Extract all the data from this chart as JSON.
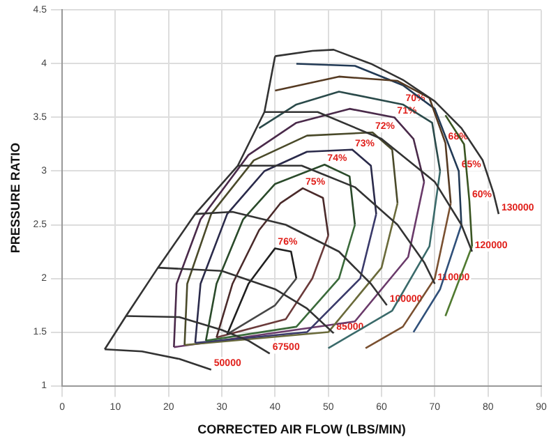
{
  "chart_data": {
    "type": "line",
    "xlabel": "CORRECTED AIR FLOW (LBS/MIN)",
    "ylabel": "PRESSURE RATIO",
    "xlim": [
      0,
      90
    ],
    "xticks": [
      0,
      10,
      20,
      30,
      40,
      50,
      60,
      70,
      80,
      90
    ],
    "ylim": [
      1,
      4.5
    ],
    "yticks": [
      1,
      1.5,
      2,
      2.5,
      3,
      3.5,
      4,
      4.5
    ],
    "grid": true,
    "marker": "none",
    "line_style": "solid",
    "legend": false,
    "series": [
      {
        "color": "#333333",
        "x": [
          8,
          12,
          18,
          25,
          33,
          38,
          40
        ],
        "values": [
          1.34,
          1.65,
          2.1,
          2.6,
          3.05,
          3.55,
          4.07
        ]
      },
      {
        "color": "#333333",
        "x": [
          8,
          15,
          22,
          28
        ],
        "values": [
          1.34,
          1.32,
          1.25,
          1.15
        ]
      },
      {
        "color": "#333333",
        "x": [
          12,
          22,
          30,
          35,
          39
        ],
        "values": [
          1.65,
          1.64,
          1.52,
          1.42,
          1.3
        ]
      },
      {
        "color": "#333333",
        "x": [
          18,
          30,
          40,
          46,
          51
        ],
        "values": [
          2.1,
          2.07,
          1.9,
          1.72,
          1.49
        ]
      },
      {
        "color": "#333333",
        "x": [
          25,
          32,
          42,
          52,
          58,
          61
        ],
        "values": [
          2.6,
          2.62,
          2.5,
          2.25,
          1.95,
          1.75
        ]
      },
      {
        "color": "#333333",
        "x": [
          33,
          45,
          55,
          63,
          68,
          70
        ],
        "values": [
          3.05,
          3.05,
          2.85,
          2.5,
          2.15,
          1.95
        ]
      },
      {
        "color": "#333333",
        "x": [
          38,
          48,
          60,
          70,
          75,
          77
        ],
        "values": [
          3.55,
          3.55,
          3.3,
          2.9,
          2.5,
          2.25
        ]
      },
      {
        "color": "#333333",
        "x": [
          40,
          47,
          51,
          58,
          64,
          70,
          75,
          79,
          81,
          82
        ],
        "values": [
          4.07,
          4.12,
          4.13,
          4.0,
          3.85,
          3.65,
          3.4,
          3.1,
          2.8,
          2.6
        ]
      },
      {
        "color": "#1f1f1f",
        "x": [
          31,
          35,
          38,
          40,
          43,
          44
        ],
        "values": [
          1.48,
          1.95,
          2.15,
          2.28,
          2.25,
          2.0
        ]
      },
      {
        "color": "#474747",
        "x": [
          31,
          40,
          44
        ],
        "values": [
          1.48,
          1.75,
          2.0
        ]
      },
      {
        "color": "#4a2a2a",
        "x": [
          29,
          32,
          37,
          41,
          45.2,
          49,
          50
        ],
        "values": [
          1.45,
          1.95,
          2.45,
          2.7,
          2.84,
          2.75,
          2.4
        ]
      },
      {
        "color": "#6a3a3a",
        "x": [
          29,
          42,
          47,
          50
        ],
        "values": [
          1.45,
          1.62,
          2.0,
          2.4
        ]
      },
      {
        "color": "#2a4a2a",
        "x": [
          27,
          29,
          34,
          40,
          49.3,
          54,
          55
        ],
        "values": [
          1.42,
          1.95,
          2.55,
          2.88,
          3.06,
          2.95,
          2.5
        ]
      },
      {
        "color": "#3a6a3a",
        "x": [
          27,
          44,
          52,
          55
        ],
        "values": [
          1.42,
          1.55,
          2.0,
          2.5
        ]
      },
      {
        "color": "#2a2a4a",
        "x": [
          25,
          26,
          31,
          38,
          46,
          54.5,
          58,
          59
        ],
        "values": [
          1.4,
          1.95,
          2.6,
          3.0,
          3.18,
          3.2,
          3.05,
          2.6
        ]
      },
      {
        "color": "#3a3a6a",
        "x": [
          25,
          46,
          56,
          59
        ],
        "values": [
          1.4,
          1.5,
          2.0,
          2.6
        ]
      },
      {
        "color": "#4a4a2a",
        "x": [
          23,
          23.5,
          28,
          36,
          46,
          58.3,
          62,
          63
        ],
        "values": [
          1.38,
          1.95,
          2.6,
          3.1,
          3.33,
          3.36,
          3.2,
          2.7
        ]
      },
      {
        "color": "#6a6a3a",
        "x": [
          23,
          50,
          60,
          63
        ],
        "values": [
          1.38,
          1.5,
          2.1,
          2.7
        ]
      },
      {
        "color": "#4a2a4a",
        "x": [
          21,
          21.5,
          26,
          35,
          44,
          54,
          62.4,
          66,
          68
        ],
        "values": [
          1.36,
          1.95,
          2.55,
          3.15,
          3.45,
          3.58,
          3.5,
          3.3,
          2.9
        ]
      },
      {
        "color": "#6a3a6a",
        "x": [
          21,
          55,
          65,
          68
        ],
        "values": [
          1.36,
          1.6,
          2.2,
          2.9
        ]
      },
      {
        "color": "#2a4a4a",
        "x": [
          37,
          44,
          52,
          64,
          69.5,
          71
        ],
        "values": [
          3.4,
          3.62,
          3.74,
          3.62,
          3.45,
          3.0
        ]
      },
      {
        "color": "#3a6a6a",
        "x": [
          50,
          62,
          69,
          71
        ],
        "values": [
          1.35,
          1.7,
          2.3,
          3.0
        ]
      },
      {
        "color": "#553a22",
        "x": [
          40,
          52,
          63,
          69,
          72,
          73
        ],
        "values": [
          3.75,
          3.88,
          3.84,
          3.68,
          3.26,
          2.7
        ]
      },
      {
        "color": "#7a5030",
        "x": [
          57,
          64,
          70,
          73
        ],
        "values": [
          1.35,
          1.55,
          2.0,
          2.7
        ]
      },
      {
        "color": "#223a55",
        "x": [
          44,
          55,
          64,
          70,
          74.5,
          75
        ],
        "values": [
          4.0,
          3.98,
          3.8,
          3.58,
          3.0,
          2.5
        ]
      },
      {
        "color": "#30507a",
        "x": [
          66,
          71,
          75
        ],
        "values": [
          1.5,
          1.9,
          2.5
        ]
      },
      {
        "color": "#3a5522",
        "x": [
          72,
          75.5,
          76.5,
          77
        ],
        "values": [
          3.52,
          3.25,
          2.72,
          2.3
        ]
      },
      {
        "color": "#507a30",
        "x": [
          72,
          77
        ],
        "values": [
          1.65,
          2.3
        ]
      }
    ],
    "annotations": [
      {
        "text": "50000",
        "x": 28,
        "y": 1.15
      },
      {
        "text": "67500",
        "x": 39,
        "y": 1.3
      },
      {
        "text": "85000",
        "x": 51,
        "y": 1.49
      },
      {
        "text": "100000",
        "x": 61,
        "y": 1.75
      },
      {
        "text": "110000",
        "x": 70,
        "y": 1.95
      },
      {
        "text": "120000",
        "x": 77,
        "y": 2.25
      },
      {
        "text": "130000",
        "x": 82,
        "y": 2.6
      },
      {
        "text": "76%",
        "x": 40,
        "y": 2.28
      },
      {
        "text": "75%",
        "x": 45.2,
        "y": 2.84
      },
      {
        "text": "74%",
        "x": 49.3,
        "y": 3.06
      },
      {
        "text": "73%",
        "x": 54.5,
        "y": 3.2
      },
      {
        "text": "72%",
        "x": 58.3,
        "y": 3.36
      },
      {
        "text": "71%",
        "x": 62.4,
        "y": 3.5
      },
      {
        "text": "70%",
        "x": 64,
        "y": 3.62
      },
      {
        "text": "68%",
        "x": 72,
        "y": 3.26
      },
      {
        "text": "65%",
        "x": 74.5,
        "y": 3.0
      },
      {
        "text": "60%",
        "x": 76.5,
        "y": 2.72
      }
    ]
  }
}
